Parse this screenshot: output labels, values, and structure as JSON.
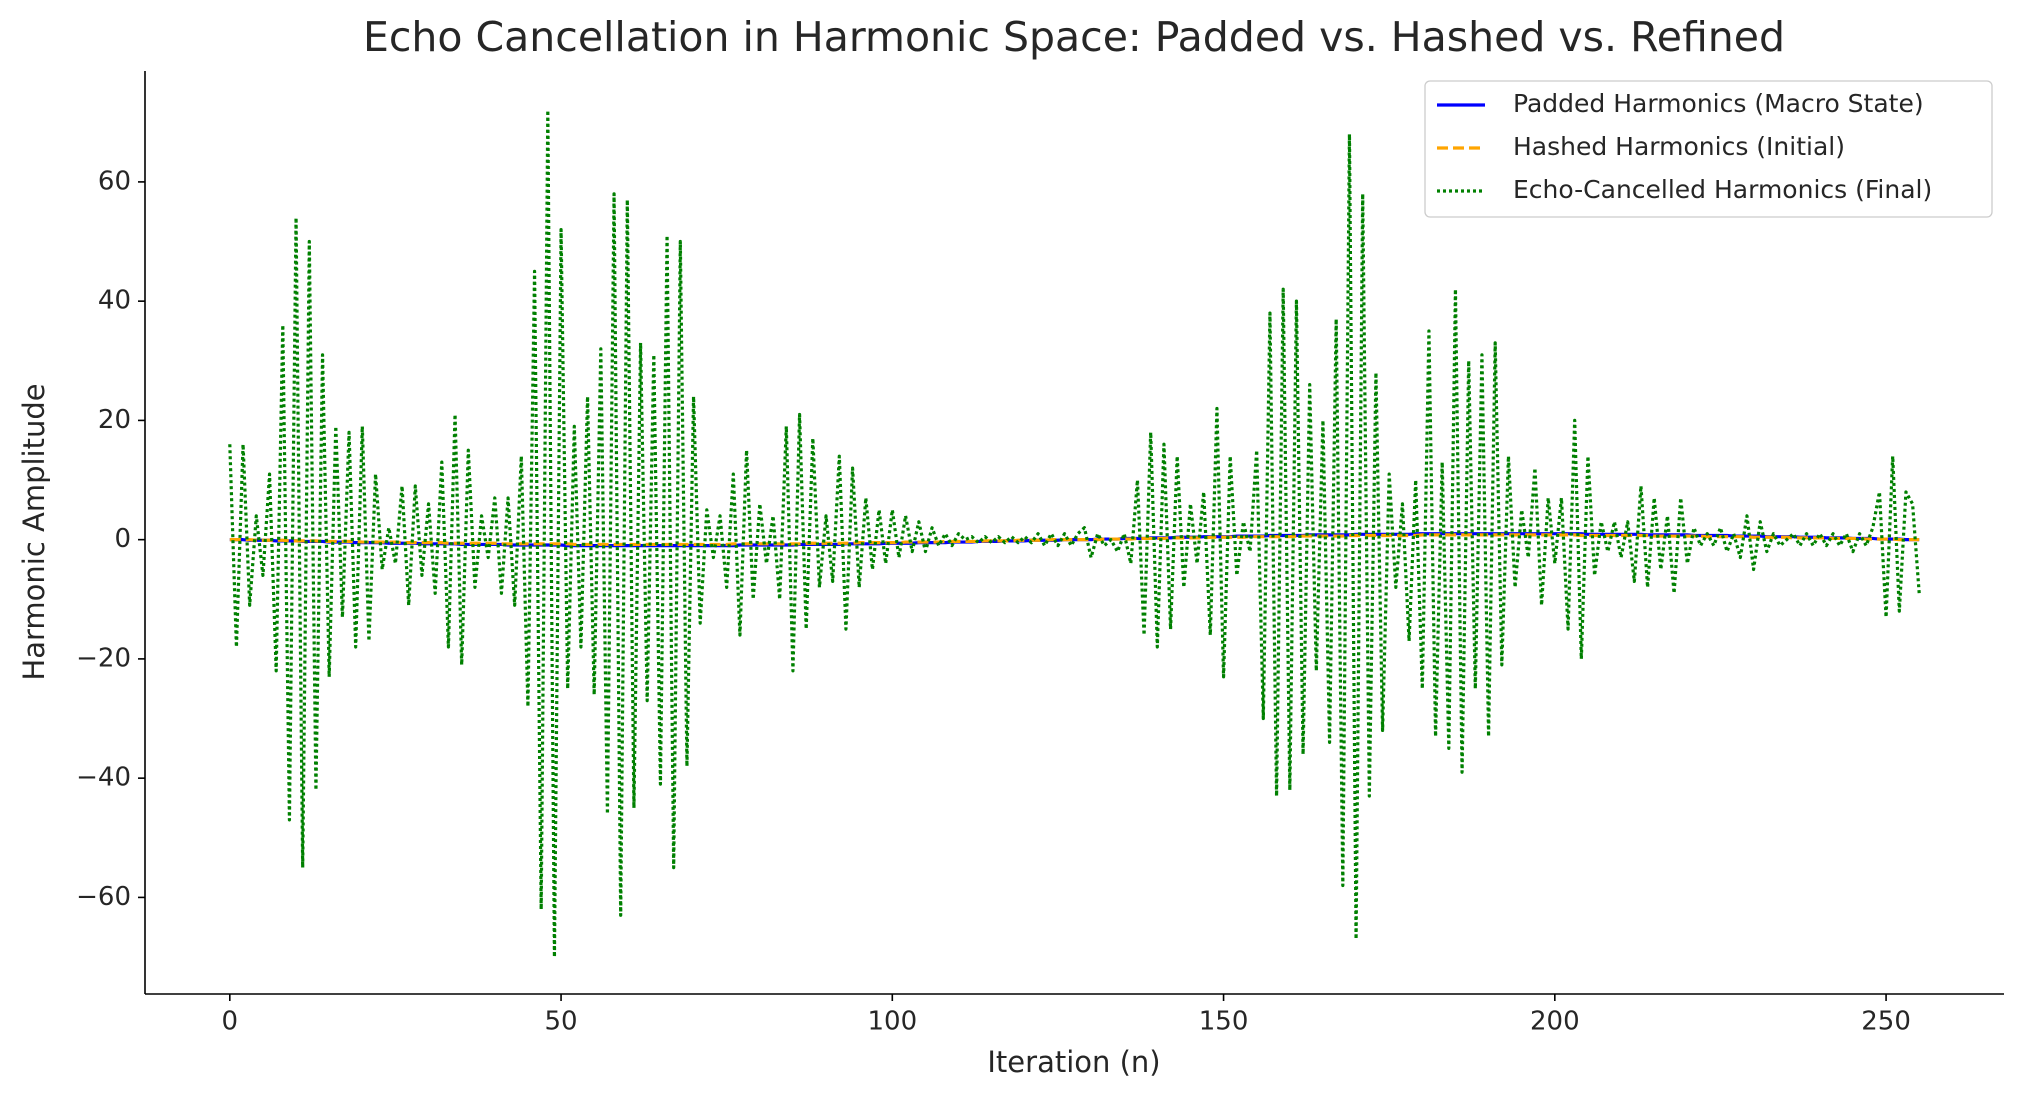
{
  "chart_data": {
    "type": "line",
    "title": "Echo Cancellation in Harmonic Space: Padded vs. Hashed vs. Refined",
    "x_label": "Iteration (n)",
    "y_label": "Harmonic Amplitude",
    "x": [
      0,
      1,
      2,
      3,
      4,
      5,
      6,
      7,
      8,
      9,
      10,
      11,
      12,
      13,
      14,
      15,
      16,
      17,
      18,
      19,
      20,
      21,
      22,
      23,
      24,
      25,
      26,
      27,
      28,
      29,
      30,
      31,
      32,
      33,
      34,
      35,
      36,
      37,
      38,
      39,
      40,
      41,
      42,
      43,
      44,
      45,
      46,
      47,
      48,
      49,
      50,
      51,
      52,
      53,
      54,
      55,
      56,
      57,
      58,
      59,
      60,
      61,
      62,
      63,
      64,
      65,
      66,
      67,
      68,
      69,
      70,
      71,
      72,
      73,
      74,
      75,
      76,
      77,
      78,
      79,
      80,
      81,
      82,
      83,
      84,
      85,
      86,
      87,
      88,
      89,
      90,
      91,
      92,
      93,
      94,
      95,
      96,
      97,
      98,
      99,
      100,
      101,
      102,
      103,
      104,
      105,
      106,
      107,
      108,
      109,
      110,
      111,
      112,
      113,
      114,
      115,
      116,
      117,
      118,
      119,
      120,
      121,
      122,
      123,
      124,
      125,
      126,
      127,
      128,
      129,
      130,
      131,
      132,
      133,
      134,
      135,
      136,
      137,
      138,
      139,
      140,
      141,
      142,
      143,
      144,
      145,
      146,
      147,
      148,
      149,
      150,
      151,
      152,
      153,
      154,
      155,
      156,
      157,
      158,
      159,
      160,
      161,
      162,
      163,
      164,
      165,
      166,
      167,
      168,
      169,
      170,
      171,
      172,
      173,
      174,
      175,
      176,
      177,
      178,
      179,
      180,
      181,
      182,
      183,
      184,
      185,
      186,
      187,
      188,
      189,
      190,
      191,
      192,
      193,
      194,
      195,
      196,
      197,
      198,
      199,
      200,
      201,
      202,
      203,
      204,
      205,
      206,
      207,
      208,
      209,
      210,
      211,
      212,
      213,
      214,
      215,
      216,
      217,
      218,
      219,
      220,
      221,
      222,
      223,
      224,
      225,
      226,
      227,
      228,
      229,
      230,
      231,
      232,
      233,
      234,
      235,
      236,
      237,
      238,
      239,
      240,
      241,
      242,
      243,
      244,
      245,
      246,
      247,
      248,
      249,
      250,
      251,
      252,
      253,
      254,
      255
    ],
    "series": [
      {
        "name": "Padded Harmonics (Macro State)",
        "color": "#0000ff",
        "linestyle": "solid",
        "values": [
          0,
          0,
          0,
          -0.1,
          -0.1,
          -0.1,
          -0.1,
          -0.2,
          -0.2,
          -0.2,
          -0.2,
          -0.3,
          -0.3,
          -0.3,
          -0.3,
          -0.4,
          -0.4,
          -0.4,
          -0.4,
          -0.5,
          -0.5,
          -0.5,
          -0.5,
          -0.5,
          -0.6,
          -0.6,
          -0.6,
          -0.6,
          -0.6,
          -0.7,
          -0.7,
          -0.7,
          -0.7,
          -0.7,
          -0.7,
          -0.8,
          -0.8,
          -0.8,
          -0.8,
          -0.8,
          -0.8,
          -0.8,
          -0.9,
          -0.9,
          -0.9,
          -0.9,
          -0.9,
          -0.9,
          -0.9,
          -0.9,
          -0.9,
          -1,
          -1,
          -1,
          -1,
          -1,
          -1,
          -1,
          -1,
          -1,
          -1,
          -1,
          -1,
          -1,
          -1,
          -1,
          -1,
          -1,
          -1,
          -1,
          -1,
          -1,
          -1,
          -1,
          -1,
          -1,
          -1,
          -0.9,
          -0.9,
          -0.9,
          -0.9,
          -0.9,
          -0.9,
          -0.9,
          -0.9,
          -0.9,
          -0.8,
          -0.8,
          -0.8,
          -0.8,
          -0.8,
          -0.8,
          -0.8,
          -0.7,
          -0.7,
          -0.7,
          -0.7,
          -0.7,
          -0.7,
          -0.6,
          -0.6,
          -0.6,
          -0.6,
          -0.6,
          -0.5,
          -0.5,
          -0.5,
          -0.5,
          -0.5,
          -0.4,
          -0.4,
          -0.4,
          -0.4,
          -0.3,
          -0.3,
          -0.3,
          -0.3,
          -0.2,
          -0.2,
          -0.2,
          -0.2,
          -0.1,
          -0.1,
          -0.1,
          -0.1,
          -0.1,
          0,
          0,
          0,
          0,
          0,
          0.1,
          0.1,
          0.1,
          0.1,
          0.2,
          0.2,
          0.2,
          0.2,
          0.3,
          0.3,
          0.3,
          0.3,
          0.4,
          0.4,
          0.4,
          0.4,
          0.5,
          0.5,
          0.5,
          0.5,
          0.5,
          0.6,
          0.6,
          0.6,
          0.6,
          0.6,
          0.7,
          0.7,
          0.7,
          0.7,
          0.7,
          0.7,
          0.8,
          0.8,
          0.8,
          0.8,
          0.8,
          0.8,
          0.8,
          0.9,
          0.9,
          0.9,
          0.9,
          0.9,
          0.9,
          0.9,
          0.9,
          0.9,
          1,
          1,
          1,
          1,
          1,
          1,
          1,
          1,
          1,
          1,
          1,
          1,
          1,
          1,
          1,
          1,
          1,
          1,
          1,
          1,
          1,
          1,
          1,
          1,
          1,
          1,
          0.9,
          0.9,
          0.9,
          0.9,
          0.9,
          0.9,
          0.9,
          0.9,
          0.9,
          0.8,
          0.8,
          0.8,
          0.8,
          0.8,
          0.8,
          0.8,
          0.7,
          0.7,
          0.7,
          0.7,
          0.7,
          0.7,
          0.6,
          0.6,
          0.6,
          0.6,
          0.6,
          0.5,
          0.5,
          0.5,
          0.5,
          0.5,
          0.4,
          0.4,
          0.4,
          0.4,
          0.3,
          0.3,
          0.3,
          0.3,
          0.2,
          0.2,
          0.2,
          0.2,
          0.1,
          0.1,
          0.1,
          0.1,
          0,
          0,
          0
        ]
      },
      {
        "name": "Hashed Harmonics (Initial)",
        "color": "#ffa500",
        "linestyle": "dashed",
        "values": [
          0,
          0,
          0,
          0,
          -0.1,
          -0.1,
          -0.1,
          -0.1,
          -0.1,
          -0.2,
          -0.2,
          -0.2,
          -0.2,
          -0.2,
          -0.3,
          -0.3,
          -0.3,
          -0.3,
          -0.3,
          -0.3,
          -0.4,
          -0.4,
          -0.4,
          -0.4,
          -0.4,
          -0.4,
          -0.5,
          -0.5,
          -0.5,
          -0.5,
          -0.5,
          -0.5,
          -0.5,
          -0.6,
          -0.6,
          -0.6,
          -0.6,
          -0.6,
          -0.6,
          -0.6,
          -0.6,
          -0.7,
          -0.7,
          -0.7,
          -0.7,
          -0.7,
          -0.7,
          -0.7,
          -0.7,
          -0.7,
          -0.7,
          -0.7,
          -0.8,
          -0.8,
          -0.8,
          -0.8,
          -0.8,
          -0.8,
          -0.8,
          -0.8,
          -0.8,
          -0.8,
          -0.8,
          -0.8,
          -0.8,
          -0.8,
          -0.8,
          -0.8,
          -0.8,
          -0.8,
          -0.8,
          -0.8,
          -0.8,
          -0.8,
          -0.8,
          -0.8,
          -0.7,
          -0.7,
          -0.7,
          -0.7,
          -0.7,
          -0.7,
          -0.7,
          -0.7,
          -0.7,
          -0.7,
          -0.7,
          -0.6,
          -0.6,
          -0.6,
          -0.6,
          -0.6,
          -0.6,
          -0.6,
          -0.6,
          -0.5,
          -0.5,
          -0.5,
          -0.5,
          -0.5,
          -0.5,
          -0.5,
          -0.4,
          -0.4,
          -0.4,
          -0.4,
          -0.4,
          -0.4,
          -0.3,
          -0.3,
          -0.3,
          -0.3,
          -0.3,
          -0.3,
          -0.2,
          -0.2,
          -0.2,
          -0.2,
          -0.2,
          -0.1,
          -0.1,
          -0.1,
          -0.1,
          -0.1,
          0,
          0,
          0,
          0,
          0,
          0,
          0,
          0,
          0.1,
          0.1,
          0.1,
          0.1,
          0.1,
          0.2,
          0.2,
          0.2,
          0.2,
          0.2,
          0.3,
          0.3,
          0.3,
          0.3,
          0.3,
          0.3,
          0.4,
          0.4,
          0.4,
          0.4,
          0.4,
          0.4,
          0.5,
          0.5,
          0.5,
          0.5,
          0.5,
          0.5,
          0.5,
          0.6,
          0.6,
          0.6,
          0.6,
          0.6,
          0.6,
          0.6,
          0.6,
          0.7,
          0.7,
          0.7,
          0.7,
          0.7,
          0.7,
          0.7,
          0.7,
          0.7,
          0.7,
          0.7,
          0.8,
          0.8,
          0.8,
          0.8,
          0.8,
          0.8,
          0.8,
          0.8,
          0.8,
          0.8,
          0.8,
          0.8,
          0.8,
          0.8,
          0.8,
          0.8,
          0.8,
          0.8,
          0.8,
          0.8,
          0.8,
          0.8,
          0.8,
          0.8,
          0.7,
          0.7,
          0.7,
          0.7,
          0.7,
          0.7,
          0.7,
          0.7,
          0.7,
          0.7,
          0.7,
          0.6,
          0.6,
          0.6,
          0.6,
          0.6,
          0.6,
          0.6,
          0.6,
          0.5,
          0.5,
          0.5,
          0.5,
          0.5,
          0.5,
          0.5,
          0.4,
          0.4,
          0.4,
          0.4,
          0.4,
          0.4,
          0.3,
          0.3,
          0.3,
          0.3,
          0.3,
          0.3,
          0.2,
          0.2,
          0.2,
          0.2,
          0.2,
          0.1,
          0.1,
          0.1,
          0.1,
          0.1,
          0,
          0,
          0,
          0
        ]
      },
      {
        "name": "Echo-Cancelled Harmonics (Final)",
        "color": "#008000",
        "linestyle": "dotted",
        "values": [
          16,
          -18,
          16,
          -11,
          4,
          -6,
          11,
          -22,
          36,
          -47,
          54,
          -55,
          50,
          -42,
          31,
          -23,
          19,
          -13,
          18,
          -18,
          19,
          -17,
          11,
          -5,
          2,
          -4,
          9,
          -11,
          9,
          -6,
          6,
          -9,
          13,
          -18,
          21,
          -21,
          15,
          -8,
          4,
          -3,
          7,
          -9,
          7,
          -11,
          14,
          -28,
          45,
          -62,
          72,
          -70,
          52,
          -25,
          19,
          -18,
          24,
          -26,
          32,
          -46,
          58,
          -63,
          57,
          -45,
          33,
          -27,
          31,
          -41,
          51,
          -55,
          50,
          -38,
          24,
          -14,
          5,
          -3,
          4,
          -8,
          11,
          -16,
          15,
          -10,
          6,
          -4,
          4,
          -10,
          19,
          -22,
          21,
          -15,
          17,
          -8,
          4,
          -7,
          14,
          -15,
          12,
          -8,
          7,
          -5,
          5,
          -4,
          5,
          -3,
          4,
          -2,
          3,
          -2,
          2,
          -1,
          1,
          -1,
          1,
          0,
          0.5,
          -0.5,
          0.5,
          -0.5,
          0.5,
          -0.5,
          0.5,
          -0.5,
          0.5,
          -0.5,
          1,
          -1,
          1,
          -1,
          1,
          -1,
          1,
          2,
          -3,
          1,
          -1,
          0,
          -2,
          1,
          -4,
          10,
          -16,
          18,
          -18,
          16,
          -15,
          14,
          -8,
          6,
          -4,
          8,
          -16,
          22,
          -23,
          14,
          -6,
          3,
          -2,
          15,
          -30,
          38,
          -43,
          42,
          -42,
          40,
          -36,
          26,
          -22,
          20,
          -34,
          37,
          -58,
          68,
          -67,
          58,
          -43,
          28,
          -32,
          11,
          -8,
          6,
          -17,
          10,
          -25,
          35,
          -33,
          13,
          -35,
          42,
          -39,
          30,
          -25,
          31,
          -33,
          33,
          -21,
          14,
          -8,
          5,
          -3,
          12,
          -11,
          7,
          -4,
          7,
          -15,
          20,
          -20,
          14,
          -6,
          3,
          -2,
          3,
          -3,
          3,
          -7,
          9,
          -8,
          7,
          -5,
          4,
          -9,
          7,
          -4,
          2,
          -1,
          1,
          -1,
          2,
          -2,
          1,
          -3,
          4,
          -5,
          3,
          -2,
          1,
          -1,
          0,
          1,
          -1,
          1,
          -1,
          1,
          -1,
          1,
          -1,
          1,
          -2,
          1,
          -1,
          2,
          8,
          -13,
          14,
          -12,
          8,
          6,
          -9
        ]
      }
    ],
    "xlim": [
      -12.8,
      267.8
    ],
    "ylim": [
      -76.2,
      78.6
    ],
    "xticks": [
      0,
      50,
      100,
      150,
      200,
      250
    ],
    "yticks": [
      {
        "value": -60,
        "label": "−60"
      },
      {
        "value": -40,
        "label": "−40"
      },
      {
        "value": -20,
        "label": "−20"
      },
      0,
      20,
      40,
      60
    ],
    "grid": false,
    "legend": "upper right"
  }
}
